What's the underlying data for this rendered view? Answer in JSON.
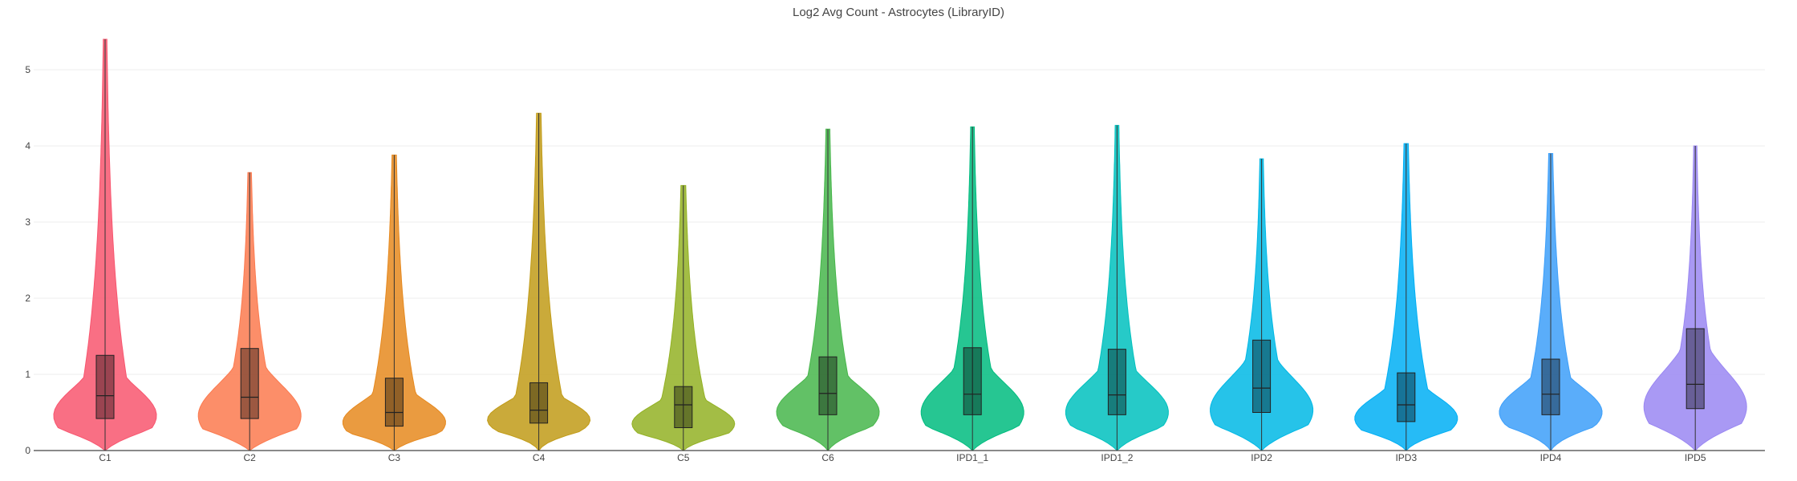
{
  "chart_data": {
    "type": "violin",
    "title": "Log2 Avg Count - Astrocytes (LibraryID)",
    "xlabel": "",
    "ylabel": "",
    "ylim": [
      0,
      5.6
    ],
    "yticks": [
      0,
      1,
      2,
      3,
      4,
      5
    ],
    "grid": true,
    "legend": "none",
    "categories": [
      "C1",
      "C2",
      "C3",
      "C4",
      "C5",
      "C6",
      "IPD1_1",
      "IPD1_2",
      "IPD2",
      "IPD3",
      "IPD4",
      "IPD5"
    ],
    "series": [
      {
        "category": "C1",
        "color": "#f8566f",
        "min": 0.0,
        "q1": 0.42,
        "median": 0.72,
        "q3": 1.25,
        "max": 5.4
      },
      {
        "category": "C2",
        "color": "#fb7a4f",
        "min": 0.0,
        "q1": 0.42,
        "median": 0.7,
        "q3": 1.34,
        "max": 3.65
      },
      {
        "category": "C3",
        "color": "#e6891f",
        "min": 0.0,
        "q1": 0.32,
        "median": 0.5,
        "q3": 0.95,
        "max": 3.88
      },
      {
        "category": "C4",
        "color": "#c19b17",
        "min": 0.0,
        "q1": 0.36,
        "median": 0.53,
        "q3": 0.89,
        "max": 4.43
      },
      {
        "category": "C5",
        "color": "#93b124",
        "min": 0.0,
        "q1": 0.3,
        "median": 0.6,
        "q3": 0.84,
        "max": 3.48
      },
      {
        "category": "C6",
        "color": "#47b64b",
        "min": 0.0,
        "q1": 0.47,
        "median": 0.75,
        "q3": 1.23,
        "max": 4.22
      },
      {
        "category": "IPD1_1",
        "color": "#00bc7f",
        "min": 0.0,
        "q1": 0.47,
        "median": 0.74,
        "q3": 1.35,
        "max": 4.25
      },
      {
        "category": "IPD1_2",
        "color": "#00c1be",
        "min": 0.0,
        "q1": 0.47,
        "median": 0.73,
        "q3": 1.33,
        "max": 4.27
      },
      {
        "category": "IPD2",
        "color": "#00b8e5",
        "min": 0.0,
        "q1": 0.5,
        "median": 0.82,
        "q3": 1.45,
        "max": 3.83
      },
      {
        "category": "IPD3",
        "color": "#00aff4",
        "min": 0.0,
        "q1": 0.38,
        "median": 0.6,
        "q3": 1.02,
        "max": 4.03
      },
      {
        "category": "IPD4",
        "color": "#3d9ff9",
        "min": 0.0,
        "q1": 0.47,
        "median": 0.74,
        "q3": 1.2,
        "max": 3.9
      },
      {
        "category": "IPD5",
        "color": "#9a87f2",
        "min": 0.0,
        "q1": 0.55,
        "median": 0.87,
        "q3": 1.6,
        "max": 4.0
      }
    ]
  }
}
